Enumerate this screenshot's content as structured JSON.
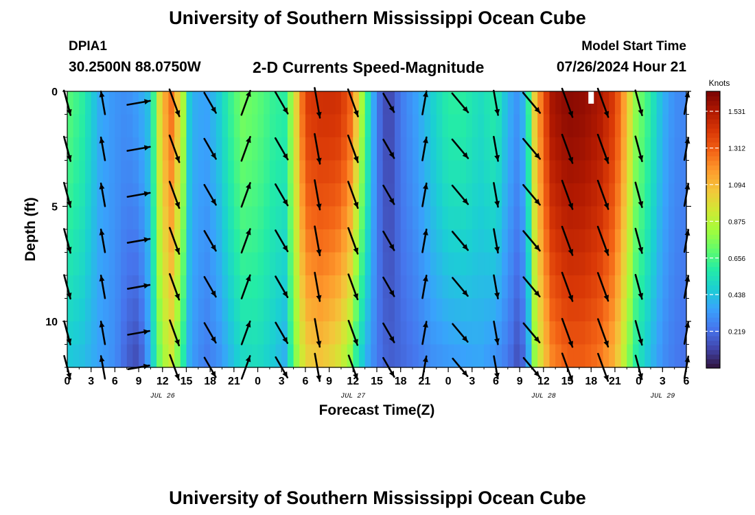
{
  "header": {
    "title": "University of Southern Mississippi Ocean Cube",
    "station_name": "DPIA1",
    "station_coords": "30.2500N  88.0750W",
    "subtitle": "2-D Currents Speed-Magnitude",
    "model_start_label": "Model Start Time",
    "model_start_value": "07/26/2024 Hour 21"
  },
  "footer": {
    "title": "University of Southern Mississippi Ocean Cube"
  },
  "chart_data": {
    "type": "heatmap",
    "title": "2-D Currents Speed-Magnitude",
    "xlabel": "Forecast Time(Z)",
    "ylabel": "Depth (ft)",
    "colorbar_label": "Knots",
    "xlim": [
      0,
      78
    ],
    "ylim": [
      0,
      12
    ],
    "x_ticks": [
      "0",
      "3",
      "6",
      "9",
      "12",
      "15",
      "18",
      "21",
      "0",
      "3",
      "6",
      "9",
      "12",
      "15",
      "18",
      "21",
      "0",
      "3",
      "6",
      "9",
      "12",
      "15",
      "18",
      "21",
      "0",
      "3",
      "6"
    ],
    "y_ticks": [
      {
        "value": 0,
        "label": "0"
      },
      {
        "value": 5,
        "label": "5"
      },
      {
        "value": 10,
        "label": "10"
      }
    ],
    "date_labels": [
      {
        "hour": 12,
        "label": "JUL 26"
      },
      {
        "hour": 36,
        "label": "JUL 27"
      },
      {
        "hour": 60,
        "label": "JUL 28"
      },
      {
        "hour": 75,
        "label": "JUL 29"
      }
    ],
    "colorbar_ticks": [
      "0.219",
      "0.438",
      "0.656",
      "0.875",
      "1.094",
      "1.312",
      "1.531"
    ],
    "colorbar_range": [
      0,
      1.65
    ],
    "colors": [
      "#30123b",
      "#4145ab",
      "#4675ed",
      "#39a2fc",
      "#1bcfd4",
      "#24eca6",
      "#61fc6c",
      "#a4fc3b",
      "#d1e834",
      "#f3c63a",
      "#fe9b2d",
      "#f36315",
      "#d93806",
      "#b11901",
      "#7a0403"
    ],
    "depths_ft": [
      0,
      1,
      2,
      3,
      4,
      5,
      6,
      7,
      8,
      9,
      10,
      11,
      12
    ],
    "speed_profile_knots": [
      {
        "hour": 0,
        "surface": 0.7,
        "bottom": 0.45
      },
      {
        "hour": 2,
        "surface": 0.6,
        "bottom": 0.42
      },
      {
        "hour": 4,
        "surface": 0.38,
        "bottom": 0.35
      },
      {
        "hour": 6,
        "surface": 0.32,
        "bottom": 0.3
      },
      {
        "hour": 7.5,
        "surface": 0.3,
        "bottom": 0.18
      },
      {
        "hour": 9,
        "surface": 0.35,
        "bottom": 0.12
      },
      {
        "hour": 10.5,
        "surface": 0.45,
        "bottom": 0.4
      },
      {
        "hour": 11.5,
        "surface": 0.95,
        "bottom": 0.7
      },
      {
        "hour": 13,
        "surface": 1.3,
        "bottom": 0.95
      },
      {
        "hour": 14.5,
        "surface": 0.9,
        "bottom": 0.6
      },
      {
        "hour": 15.5,
        "surface": 0.4,
        "bottom": 0.35
      },
      {
        "hour": 17.5,
        "surface": 0.35,
        "bottom": 0.25
      },
      {
        "hour": 19,
        "surface": 0.45,
        "bottom": 0.3
      },
      {
        "hour": 20.5,
        "surface": 0.62,
        "bottom": 0.4
      },
      {
        "hour": 22,
        "surface": 0.75,
        "bottom": 0.5
      },
      {
        "hour": 24,
        "surface": 0.7,
        "bottom": 0.52
      },
      {
        "hour": 26,
        "surface": 0.62,
        "bottom": 0.45
      },
      {
        "hour": 27.5,
        "surface": 0.6,
        "bottom": 0.38
      },
      {
        "hour": 28.5,
        "surface": 0.9,
        "bottom": 0.7
      },
      {
        "hour": 30,
        "surface": 1.4,
        "bottom": 1.0
      },
      {
        "hour": 32,
        "surface": 1.45,
        "bottom": 1.05
      },
      {
        "hour": 34,
        "surface": 1.45,
        "bottom": 0.95
      },
      {
        "hour": 35.5,
        "surface": 1.35,
        "bottom": 0.8
      },
      {
        "hour": 36.5,
        "surface": 1.05,
        "bottom": 0.55
      },
      {
        "hour": 37.5,
        "surface": 0.7,
        "bottom": 0.4
      },
      {
        "hour": 39,
        "surface": 0.25,
        "bottom": 0.25
      },
      {
        "hour": 40.5,
        "surface": 0.1,
        "bottom": 0.18
      },
      {
        "hour": 42,
        "surface": 0.25,
        "bottom": 0.2
      },
      {
        "hour": 44,
        "surface": 0.35,
        "bottom": 0.24
      },
      {
        "hour": 46,
        "surface": 0.48,
        "bottom": 0.3
      },
      {
        "hour": 48,
        "surface": 0.6,
        "bottom": 0.32
      },
      {
        "hour": 50,
        "surface": 0.6,
        "bottom": 0.34
      },
      {
        "hour": 52,
        "surface": 0.52,
        "bottom": 0.36
      },
      {
        "hour": 54,
        "surface": 0.6,
        "bottom": 0.3
      },
      {
        "hour": 55.5,
        "surface": 0.4,
        "bottom": 0.24
      },
      {
        "hour": 57,
        "surface": 0.3,
        "bottom": 0.12
      },
      {
        "hour": 58,
        "surface": 0.55,
        "bottom": 0.3
      },
      {
        "hour": 59,
        "surface": 1.1,
        "bottom": 0.85
      },
      {
        "hour": 61,
        "surface": 1.55,
        "bottom": 1.2
      },
      {
        "hour": 63,
        "surface": 1.62,
        "bottom": 1.3
      },
      {
        "hour": 65,
        "surface": 1.6,
        "bottom": 1.3
      },
      {
        "hour": 67,
        "surface": 1.55,
        "bottom": 1.25
      },
      {
        "hour": 69,
        "surface": 1.4,
        "bottom": 1.1
      },
      {
        "hour": 70.5,
        "surface": 1.1,
        "bottom": 0.8
      },
      {
        "hour": 71.5,
        "surface": 0.8,
        "bottom": 0.6
      },
      {
        "hour": 73,
        "surface": 0.65,
        "bottom": 0.45
      },
      {
        "hour": 75,
        "surface": 0.4,
        "bottom": 0.3
      },
      {
        "hour": 76.5,
        "surface": 0.3,
        "bottom": 0.25
      },
      {
        "hour": 78,
        "surface": 0.28,
        "bottom": 0.22
      }
    ],
    "vector_hours": [
      0,
      4.5,
      9,
      13.5,
      18,
      22.5,
      27,
      31.5,
      36,
      40.5,
      45,
      49.5,
      54,
      58.5,
      63,
      67.5,
      72,
      78
    ],
    "vector_depths_ft": [
      0.5,
      2.5,
      4.5,
      6.5,
      8.5,
      10.5,
      12
    ],
    "vector_directions_deg": [
      165,
      350,
      80,
      160,
      150,
      20,
      150,
      170,
      160,
      150,
      10,
      140,
      170,
      140,
      160,
      160,
      165,
      10
    ],
    "missing_marker": {
      "hour": 66,
      "depth_ft": 0
    }
  }
}
